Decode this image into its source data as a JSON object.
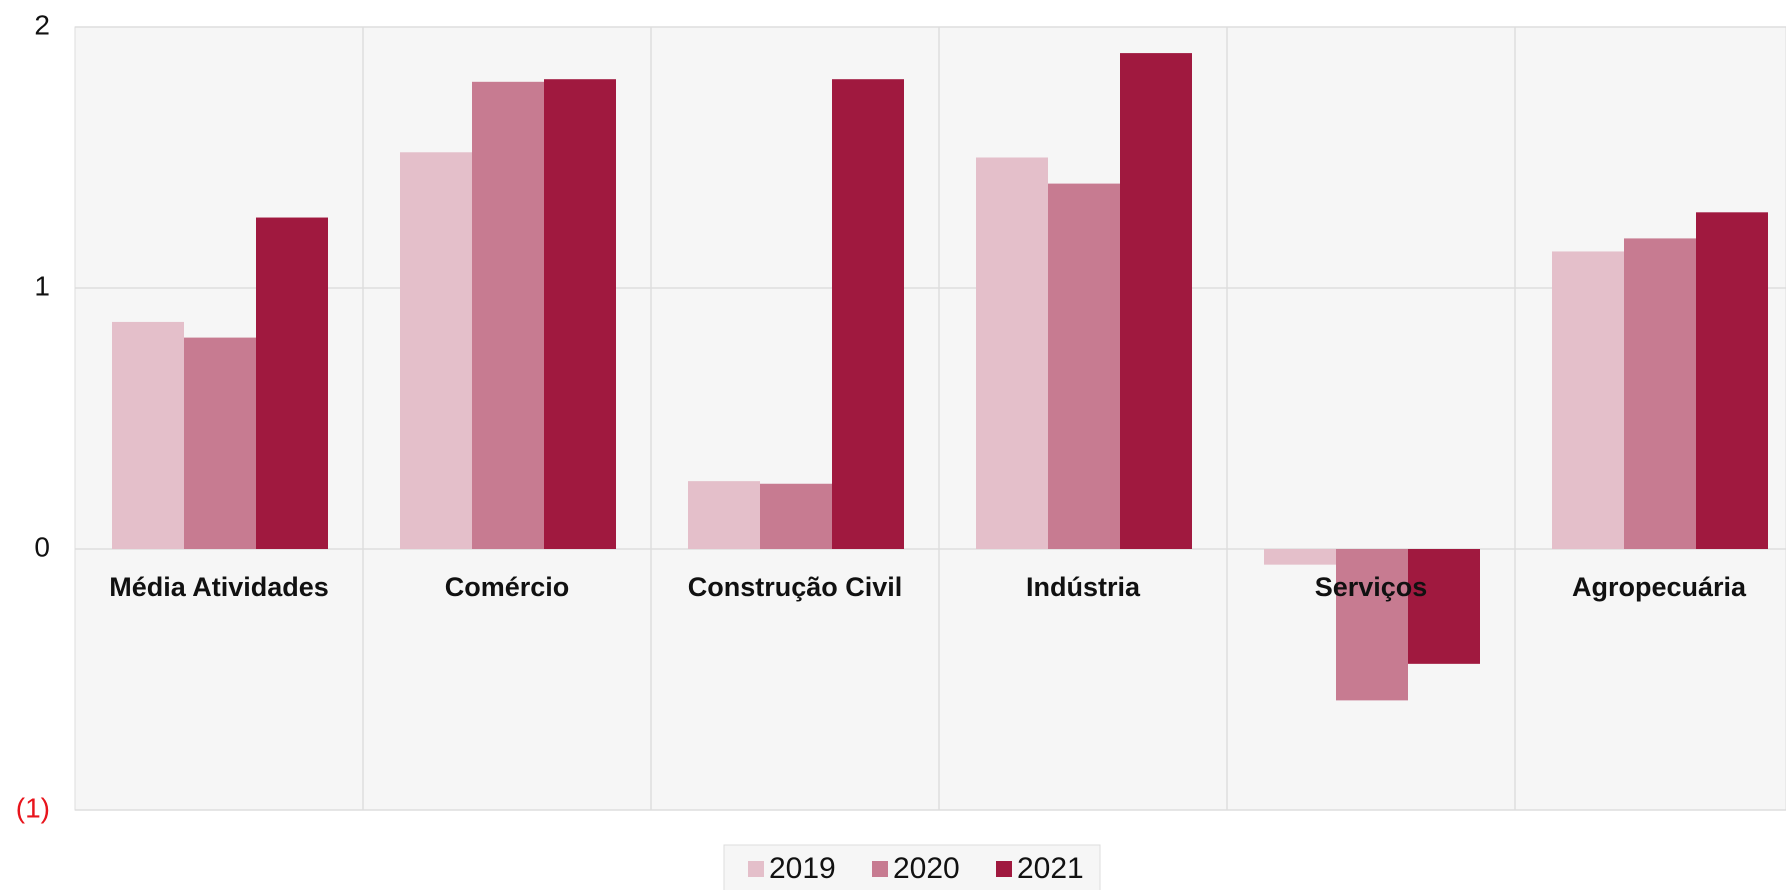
{
  "chart_data": {
    "type": "bar",
    "categories": [
      "Média Atividades",
      "Comércio",
      "Construção Civil",
      "Indústria",
      "Serviços",
      "Agropecuária"
    ],
    "series": [
      {
        "name": "2019",
        "color": "#e4bfca",
        "values": [
          0.87,
          1.52,
          0.26,
          1.5,
          -0.06,
          1.14
        ]
      },
      {
        "name": "2020",
        "color": "#c77b91",
        "values": [
          0.81,
          1.79,
          0.25,
          1.4,
          -0.58,
          1.19
        ]
      },
      {
        "name": "2021",
        "color": "#a0193f",
        "values": [
          1.27,
          1.8,
          1.8,
          1.9,
          -0.44,
          1.29
        ]
      }
    ],
    "ylim": [
      -1,
      2
    ],
    "yticks": [
      {
        "value": -1,
        "label": "(1)"
      },
      0,
      1,
      2
    ],
    "grid": true
  }
}
